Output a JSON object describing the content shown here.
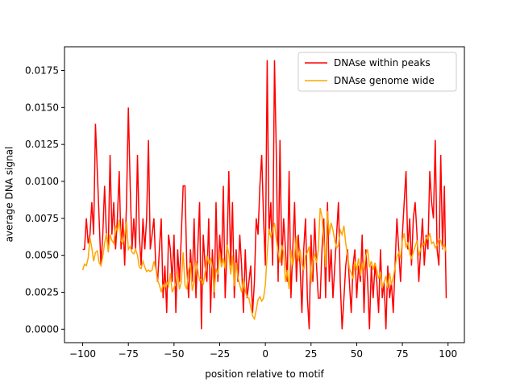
{
  "chart_data": {
    "type": "line",
    "xlabel": "position relative to motif",
    "ylabel": "average DNA signal",
    "x": [
      -100,
      -99,
      -98,
      -97,
      -96,
      -95,
      -94,
      -93,
      -92,
      -91,
      -90,
      -89,
      -88,
      -87,
      -86,
      -85,
      -84,
      -83,
      -82,
      -81,
      -80,
      -79,
      -78,
      -77,
      -76,
      -75,
      -74,
      -73,
      -72,
      -71,
      -70,
      -69,
      -68,
      -67,
      -66,
      -65,
      -64,
      -63,
      -62,
      -61,
      -60,
      -59,
      -58,
      -57,
      -56,
      -55,
      -54,
      -53,
      -52,
      -51,
      -50,
      -49,
      -48,
      -47,
      -46,
      -45,
      -44,
      -43,
      -42,
      -41,
      -40,
      -39,
      -38,
      -37,
      -36,
      -35,
      -34,
      -33,
      -32,
      -31,
      -30,
      -29,
      -28,
      -27,
      -26,
      -25,
      -24,
      -23,
      -22,
      -21,
      -20,
      -19,
      -18,
      -17,
      -16,
      -15,
      -14,
      -13,
      -12,
      -11,
      -10,
      -9,
      -8,
      -7,
      -6,
      -5,
      -4,
      -3,
      -2,
      -1,
      0,
      1,
      2,
      3,
      4,
      5,
      6,
      7,
      8,
      9,
      10,
      11,
      12,
      13,
      14,
      15,
      16,
      17,
      18,
      19,
      20,
      21,
      22,
      23,
      24,
      25,
      26,
      27,
      28,
      29,
      30,
      31,
      32,
      33,
      34,
      35,
      36,
      37,
      38,
      39,
      40,
      41,
      42,
      43,
      44,
      45,
      46,
      47,
      48,
      49,
      50,
      51,
      52,
      53,
      54,
      55,
      56,
      57,
      58,
      59,
      60,
      61,
      62,
      63,
      64,
      65,
      66,
      67,
      68,
      69,
      70,
      71,
      72,
      73,
      74,
      75,
      76,
      77,
      78,
      79,
      80,
      81,
      82,
      83,
      84,
      85,
      86,
      87,
      88,
      89,
      90,
      91,
      92,
      93,
      94,
      95,
      96,
      97,
      98,
      99
    ],
    "series": [
      {
        "name": "DNAse within peaks",
        "color": "#ff0000",
        "values": [
          0.0054,
          0.0054,
          0.0075,
          0.0058,
          0.0064,
          0.0086,
          0.0064,
          0.0139,
          0.0107,
          0.0075,
          0.0043,
          0.0064,
          0.0097,
          0.0064,
          0.0054,
          0.0118,
          0.0064,
          0.0086,
          0.0054,
          0.0075,
          0.0107,
          0.0054,
          0.0075,
          0.0043,
          0.0086,
          0.015,
          0.0097,
          0.0054,
          0.0075,
          0.0054,
          0.0118,
          0.0064,
          0.0043,
          0.0075,
          0.0054,
          0.0075,
          0.0128,
          0.0054,
          0.0064,
          0.0075,
          0.0043,
          0.0032,
          0.0054,
          0.0075,
          0.0021,
          0.0043,
          0.0011,
          0.0064,
          0.0054,
          0.0032,
          0.0064,
          0.0011,
          0.0054,
          0.0032,
          0.0064,
          0.0097,
          0.0097,
          0.0043,
          0.0021,
          0.0054,
          0.0032,
          0.0075,
          0.0021,
          0.0054,
          0.0086,
          0.0,
          0.0064,
          0.0043,
          0.0032,
          0.0075,
          0.0011,
          0.0054,
          0.0021,
          0.0086,
          0.0032,
          0.0064,
          0.0043,
          0.0097,
          0.0021,
          0.0054,
          0.0107,
          0.0043,
          0.0086,
          0.0021,
          0.0054,
          0.0032,
          0.0064,
          0.0043,
          0.0011,
          0.0054,
          0.0021,
          0.0032,
          0.0043,
          0.0011,
          0.0032,
          0.0075,
          0.0064,
          0.0097,
          0.0118,
          0.0075,
          0.0043,
          0.0182,
          0.0064,
          0.0086,
          0.0043,
          0.0182,
          0.0118,
          0.0032,
          0.0128,
          0.0043,
          0.0075,
          0.0054,
          0.0032,
          0.0107,
          0.0021,
          0.0054,
          0.0086,
          0.0032,
          0.0064,
          0.0043,
          0.0011,
          0.0054,
          0.0075,
          0.0021,
          0.0,
          0.0064,
          0.0032,
          0.0075,
          0.0043,
          0.0021,
          0.0021,
          0.0054,
          0.0075,
          0.0021,
          0.0086,
          0.0032,
          0.0054,
          0.0021,
          0.0043,
          0.0064,
          0.0086,
          0.0032,
          0.0,
          0.0021,
          0.0043,
          0.0054,
          0.0032,
          0.0011,
          0.0043,
          0.0054,
          0.0021,
          0.0043,
          0.0032,
          0.0064,
          0.0011,
          0.0054,
          0.0032,
          0.0,
          0.0043,
          0.0021,
          0.0043,
          0.0032,
          0.0011,
          0.0054,
          0.0021,
          0.0032,
          0.0,
          0.0043,
          0.0021,
          0.0032,
          0.0011,
          0.0043,
          0.0075,
          0.0054,
          0.0032,
          0.0064,
          0.0086,
          0.0107,
          0.0054,
          0.0075,
          0.0043,
          0.0075,
          0.0086,
          0.0064,
          0.0032,
          0.0054,
          0.0075,
          0.0043,
          0.0064,
          0.0054,
          0.0107,
          0.0086,
          0.0075,
          0.0128,
          0.0054,
          0.0043,
          0.0118,
          0.0054,
          0.0097,
          0.0021
        ]
      },
      {
        "name": "DNAse genome wide",
        "color": "#ffa500",
        "values": [
          0.004,
          0.0044,
          0.0043,
          0.0048,
          0.0062,
          0.0055,
          0.0046,
          0.0052,
          0.0053,
          0.0045,
          0.0043,
          0.0049,
          0.0058,
          0.0065,
          0.0052,
          0.0064,
          0.006,
          0.0058,
          0.007,
          0.0066,
          0.0074,
          0.006,
          0.0058,
          0.0064,
          0.0073,
          0.0054,
          0.0056,
          0.0052,
          0.0051,
          0.0054,
          0.005,
          0.0042,
          0.0041,
          0.0046,
          0.0042,
          0.0039,
          0.004,
          0.0039,
          0.004,
          0.0046,
          0.0041,
          0.0033,
          0.003,
          0.0025,
          0.003,
          0.0028,
          0.0032,
          0.0029,
          0.0038,
          0.0025,
          0.0028,
          0.0031,
          0.0038,
          0.0027,
          0.0032,
          0.0052,
          0.003,
          0.0027,
          0.004,
          0.0045,
          0.0026,
          0.0032,
          0.0046,
          0.004,
          0.0033,
          0.0034,
          0.003,
          0.0038,
          0.005,
          0.0044,
          0.0048,
          0.0042,
          0.0025,
          0.0041,
          0.0037,
          0.0052,
          0.0042,
          0.0048,
          0.0041,
          0.0057,
          0.0051,
          0.0037,
          0.005,
          0.0029,
          0.0045,
          0.0035,
          0.003,
          0.0025,
          0.0034,
          0.0026,
          0.0022,
          0.0021,
          0.0015,
          0.0009,
          0.0007,
          0.0013,
          0.002,
          0.0022,
          0.0019,
          0.0021,
          0.003,
          0.0051,
          0.0068,
          0.0062,
          0.0067,
          0.0072,
          0.0061,
          0.0052,
          0.0045,
          0.0057,
          0.0052,
          0.0032,
          0.004,
          0.0027,
          0.0054,
          0.0043,
          0.005,
          0.0063,
          0.0046,
          0.0054,
          0.0044,
          0.004,
          0.005,
          0.0052,
          0.0056,
          0.0031,
          0.0046,
          0.0051,
          0.0045,
          0.0054,
          0.0082,
          0.0076,
          0.006,
          0.0042,
          0.008,
          0.0064,
          0.0072,
          0.0067,
          0.006,
          0.0055,
          0.0057,
          0.0067,
          0.0064,
          0.007,
          0.0058,
          0.005,
          0.0041,
          0.0038,
          0.0034,
          0.0046,
          0.004,
          0.0048,
          0.0036,
          0.0045,
          0.004,
          0.005,
          0.0054,
          0.0042,
          0.0046,
          0.004,
          0.0045,
          0.004,
          0.0034,
          0.0039,
          0.0028,
          0.0032,
          0.0036,
          0.0028,
          0.0038,
          0.003,
          0.0035,
          0.0042,
          0.0049,
          0.0052,
          0.0048,
          0.006,
          0.0065,
          0.0055,
          0.0059,
          0.0051,
          0.0048,
          0.0052,
          0.0056,
          0.006,
          0.005,
          0.0054,
          0.0058,
          0.0057,
          0.0062,
          0.0061,
          0.0065,
          0.0058,
          0.0059,
          0.0055,
          0.0057,
          0.0061,
          0.006,
          0.0055,
          0.0057,
          0.0052
        ]
      }
    ],
    "xlim": [
      -109.95,
      108.95
    ],
    "ylim": [
      -0.00091,
      0.01911
    ],
    "xticks": [
      {
        "value": -100,
        "label": "−100"
      },
      {
        "value": -75,
        "label": "−75"
      },
      {
        "value": -50,
        "label": "−50"
      },
      {
        "value": -25,
        "label": "−25"
      },
      0,
      25,
      50,
      75,
      100
    ],
    "yticks": [
      {
        "value": 0,
        "label": "0.0000"
      },
      {
        "value": 0.0025,
        "label": "0.0025"
      },
      {
        "value": 0.005,
        "label": "0.0050"
      },
      {
        "value": 0.0075,
        "label": "0.0075"
      },
      {
        "value": 0.01,
        "label": "0.0100"
      },
      {
        "value": 0.0125,
        "label": "0.0125"
      },
      {
        "value": 0.015,
        "label": "0.0150"
      },
      {
        "value": 0.0175,
        "label": "0.0175"
      }
    ],
    "legend": "upper right"
  }
}
